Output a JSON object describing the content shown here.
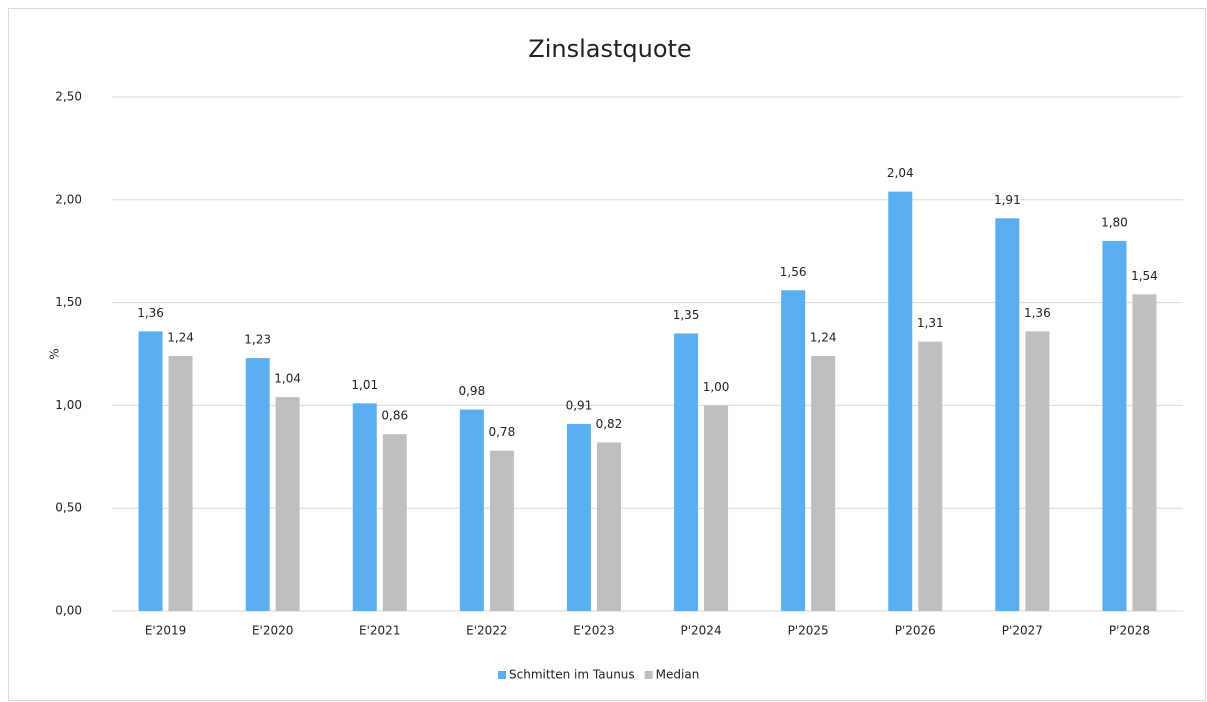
{
  "chart_data": {
    "type": "bar",
    "title": "Zinslastquote",
    "y_label": "%",
    "categories": [
      "E'2019",
      "E'2020",
      "E'2021",
      "E'2022",
      "E'2023",
      "P'2024",
      "P'2025",
      "P'2026",
      "P'2027",
      "P'2028"
    ],
    "series": [
      {
        "name": "Schmitten im Taunus",
        "color": "#5aaff0",
        "values": [
          1.36,
          1.23,
          1.01,
          0.98,
          0.91,
          1.35,
          1.56,
          2.04,
          1.91,
          1.8
        ],
        "value_labels": [
          "1,36",
          "1,23",
          "1,01",
          "0,98",
          "0,91",
          "1,35",
          "1,56",
          "2,04",
          "1,91",
          "1,80"
        ]
      },
      {
        "name": "Median",
        "color": "#bfbfbf",
        "values": [
          1.24,
          1.04,
          0.86,
          0.78,
          0.82,
          1.0,
          1.24,
          1.31,
          1.36,
          1.54
        ],
        "value_labels": [
          "1,24",
          "1,04",
          "0,86",
          "0,78",
          "0,82",
          "1,00",
          "1,24",
          "1,31",
          "1,36",
          "1,54"
        ]
      }
    ],
    "ylim": [
      0,
      2.5
    ],
    "yticks": [
      {
        "value": 0,
        "label": "0,00"
      },
      {
        "value": 0.5,
        "label": "0,50"
      },
      {
        "value": 1,
        "label": "1,00"
      },
      {
        "value": 1.5,
        "label": "1,50"
      },
      {
        "value": 2,
        "label": "2,00"
      },
      {
        "value": 2.5,
        "label": "2,50"
      }
    ],
    "grid": true,
    "legend": "bottom"
  }
}
